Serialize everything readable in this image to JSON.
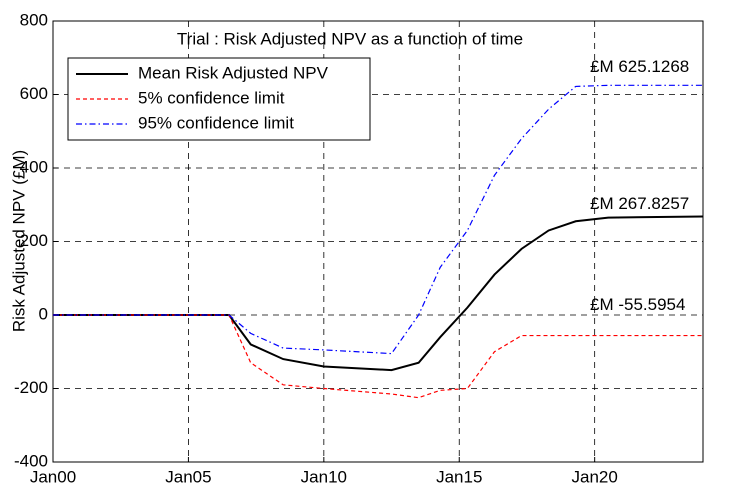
{
  "chart_data": {
    "type": "line",
    "title": "Trial : Risk Adjusted NPV as a function of time",
    "y_label": "Risk Adjusted NPV (£M)",
    "x": [
      2000,
      2006.5,
      2007.3,
      2008.5,
      2010,
      2012.5,
      2013.5,
      2014.3,
      2015.3,
      2016.3,
      2017.3,
      2018.3,
      2019.3,
      2020.5,
      2024
    ],
    "series": [
      {
        "name": "Mean Risk Adjusted NPV",
        "color": "#000000",
        "dash": "solid",
        "values": [
          0,
          0,
          -80,
          -120,
          -140,
          -150,
          -130,
          -60,
          20,
          110,
          180,
          230,
          255,
          265,
          268
        ]
      },
      {
        "name": "5% confidence limit",
        "color": "#ff0000",
        "dash": "dashed",
        "values": [
          0,
          0,
          -130,
          -190,
          -200,
          -215,
          -225,
          -205,
          -200,
          -100,
          -56,
          -56,
          -56,
          -56,
          -56
        ]
      },
      {
        "name": "95% confidence limit",
        "color": "#0000ff",
        "dash": "dashdot",
        "values": [
          0,
          0,
          -50,
          -90,
          -95,
          -105,
          0,
          130,
          230,
          380,
          480,
          560,
          622,
          625,
          625
        ]
      }
    ],
    "annotations": [
      "£M 625.1268",
      "£M 267.8257",
      "£M -55.5954"
    ],
    "xlim": [
      2000,
      2024
    ],
    "xticks": [
      {
        "value": 2000,
        "label": "Jan00"
      },
      {
        "value": 2005,
        "label": "Jan05"
      },
      {
        "value": 2010,
        "label": "Jan10"
      },
      {
        "value": 2015,
        "label": "Jan15"
      },
      {
        "value": 2020,
        "label": "Jan20"
      }
    ],
    "ylim": [
      -400,
      800
    ],
    "yticks": [
      -400,
      -200,
      0,
      200,
      400,
      600,
      800
    ],
    "grid": true,
    "legend": "upper left"
  }
}
